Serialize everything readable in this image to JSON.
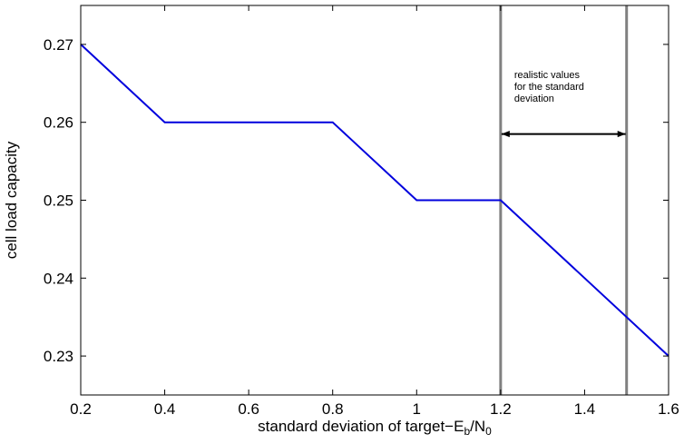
{
  "chart_data": {
    "type": "line",
    "title": "",
    "xlabel": {
      "main": "standard deviation of target−E",
      "sub1": "b",
      "mid": "/N",
      "sub2": "0"
    },
    "ylabel": "cell load capacity",
    "xlim": [
      0.2,
      1.6
    ],
    "ylim": [
      0.225,
      0.275
    ],
    "x_ticks": [
      0.2,
      0.4,
      0.6,
      0.8,
      1.0,
      1.2,
      1.4,
      1.6
    ],
    "x_tick_labels": [
      "0.2",
      "0.4",
      "0.6",
      "0.8",
      "1",
      "1.2",
      "1.4",
      "1.6"
    ],
    "y_ticks": [
      0.23,
      0.24,
      0.25,
      0.26,
      0.27
    ],
    "y_tick_labels": [
      "0.23",
      "0.24",
      "0.25",
      "0.26",
      "0.27"
    ],
    "grid": false,
    "series": [
      {
        "color": "#0000dd",
        "x": [
          0.2,
          0.4,
          0.8,
          1.0,
          1.2,
          1.6
        ],
        "y": [
          0.27,
          0.26,
          0.26,
          0.25,
          0.25,
          0.23
        ]
      }
    ],
    "vertical_lines": {
      "x": [
        1.2,
        1.5
      ],
      "color": "#808080"
    },
    "annotation": {
      "lines": [
        "realistic values",
        "for the standard",
        "deviation"
      ],
      "arrow_x": [
        1.2,
        1.5
      ],
      "arrow_y": 0.2585
    }
  }
}
